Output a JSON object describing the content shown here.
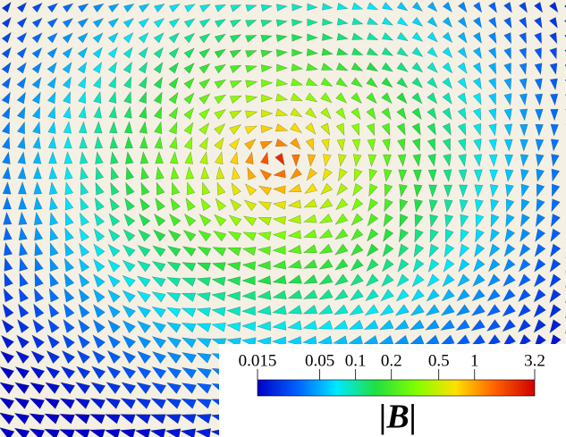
{
  "colorbar": {
    "label": "|B|",
    "scale": "log",
    "lim": [
      0.015,
      3.2
    ],
    "ticks": [
      0.015,
      0.05,
      0.1,
      0.2,
      0.5,
      1,
      3.2
    ],
    "colormap": [
      "#0000c8",
      "#0060ff",
      "#00e8ff",
      "#20e040",
      "#80ff00",
      "#ffe000",
      "#ff6000",
      "#d00000"
    ]
  }
}
